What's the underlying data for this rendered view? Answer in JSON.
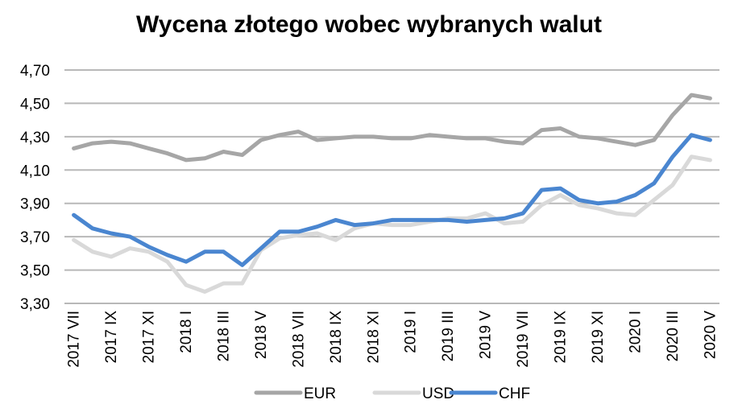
{
  "chart_data": {
    "type": "line",
    "title": "Wycena złotego wobec wybranych walut",
    "xlabel": "",
    "ylabel": "",
    "ylim": [
      3.3,
      4.7
    ],
    "y_ticks": [
      "3,30",
      "3,50",
      "3,70",
      "3,90",
      "4,10",
      "4,30",
      "4,50",
      "4,70"
    ],
    "y_tick_values": [
      3.3,
      3.5,
      3.7,
      3.9,
      4.1,
      4.3,
      4.5,
      4.7
    ],
    "grid": true,
    "legend_position": "bottom",
    "categories": [
      "2017 VII",
      "2017 VIII",
      "2017 IX",
      "2017 X",
      "2017 XI",
      "2017 XII",
      "2018 I",
      "2018 II",
      "2018 III",
      "2018 IV",
      "2018 V",
      "2018 VI",
      "2018 VII",
      "2018 VIII",
      "2018 IX",
      "2018 X",
      "2018 XI",
      "2018 XII",
      "2019 I",
      "2019 II",
      "2019 III",
      "2019 IV",
      "2019 V",
      "2019 VI",
      "2019 VII",
      "2019 VIII",
      "2019 IX",
      "2019 X",
      "2019 XI",
      "2019 XII",
      "2020 I",
      "2020 II",
      "2020 III",
      "2020 IV",
      "2020 V"
    ],
    "x_tick_labels": [
      "2017 VII",
      "2017 IX",
      "2017 XI",
      "2018 I",
      "2018 III",
      "2018 V",
      "2018 VII",
      "2018 IX",
      "2018 XI",
      "2019 I",
      "2019 III",
      "2019 V",
      "2019 VII",
      "2019 IX",
      "2019 XI",
      "2020 I",
      "2020 III",
      "2020 V"
    ],
    "x_tick_indices": [
      0,
      2,
      4,
      6,
      8,
      10,
      12,
      14,
      16,
      18,
      20,
      22,
      24,
      26,
      28,
      30,
      32,
      34
    ],
    "series": [
      {
        "name": "EUR",
        "color": "#a6a6a6",
        "values": [
          4.23,
          4.26,
          4.27,
          4.26,
          4.23,
          4.2,
          4.16,
          4.17,
          4.21,
          4.19,
          4.28,
          4.31,
          4.33,
          4.28,
          4.29,
          4.3,
          4.3,
          4.29,
          4.29,
          4.31,
          4.3,
          4.29,
          4.29,
          4.27,
          4.26,
          4.34,
          4.35,
          4.3,
          4.29,
          4.27,
          4.25,
          4.28,
          4.43,
          4.55,
          4.53
        ]
      },
      {
        "name": "USD",
        "color": "#d9d9d9",
        "values": [
          3.68,
          3.61,
          3.58,
          3.63,
          3.61,
          3.55,
          3.41,
          3.37,
          3.42,
          3.42,
          3.62,
          3.69,
          3.71,
          3.72,
          3.68,
          3.75,
          3.78,
          3.77,
          3.77,
          3.79,
          3.81,
          3.81,
          3.84,
          3.78,
          3.79,
          3.89,
          3.95,
          3.89,
          3.87,
          3.84,
          3.83,
          3.92,
          4.01,
          4.18,
          4.16
        ]
      },
      {
        "name": "CHF",
        "color": "#4a86d0",
        "values": [
          3.83,
          3.75,
          3.72,
          3.7,
          3.64,
          3.59,
          3.55,
          3.61,
          3.61,
          3.53,
          3.63,
          3.73,
          3.73,
          3.76,
          3.8,
          3.77,
          3.78,
          3.8,
          3.8,
          3.8,
          3.8,
          3.79,
          3.8,
          3.81,
          3.84,
          3.98,
          3.99,
          3.92,
          3.9,
          3.91,
          3.95,
          4.02,
          4.18,
          4.31,
          4.28
        ]
      }
    ]
  }
}
